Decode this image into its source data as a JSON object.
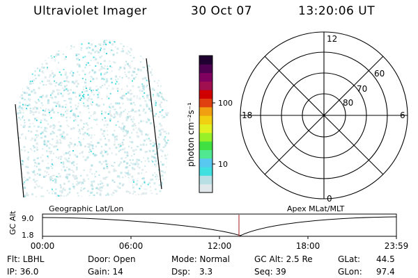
{
  "header": {
    "title": "Ultraviolet Imager",
    "date": "30 Oct 07",
    "time": "13:20:06 UT"
  },
  "colorbar": {
    "label": "photon cm⁻²s⁻¹",
    "ticks": [
      "100",
      "10"
    ],
    "colors": [
      "#e0e8ec",
      "#b8dfe4",
      "#40e0e0",
      "#58c8f0",
      "#50e890",
      "#40e040",
      "#98f028",
      "#e0f020",
      "#f0d010",
      "#f0a010",
      "#e04010",
      "#d00000",
      "#a01050",
      "#800060",
      "#500050",
      "#200030"
    ]
  },
  "polar": {
    "mlt_labels": {
      "top": "12",
      "right": "6",
      "bottom": "0",
      "left": "18"
    },
    "lat_labels": [
      "60",
      "70",
      "80"
    ]
  },
  "timeline": {
    "left_title": "Geographic Lat/Lon",
    "right_title": "Apex MLat/MLT",
    "y_axis_label": "GC Alt",
    "y_ticks": [
      "9.0",
      "1.8"
    ],
    "x_ticks": [
      "00:00",
      "06:00",
      "12:00",
      "18:00",
      "23:59"
    ],
    "cursor_color": "#b04040"
  },
  "status": {
    "flt": "Flt: LBHL",
    "ip": "IP: 36.0",
    "door": "Door: Open",
    "gain": "Gain: 14",
    "mode": "Mode: Normal",
    "dsp_label": "Dsp:",
    "dsp_value": "3.3",
    "gc_alt": "GC Alt: 2.5 Re",
    "seq": "Seq: 39",
    "glat_label": "GLat:",
    "glat_value": "44.5",
    "glon_label": "GLon:",
    "glon_value": "97.4"
  }
}
